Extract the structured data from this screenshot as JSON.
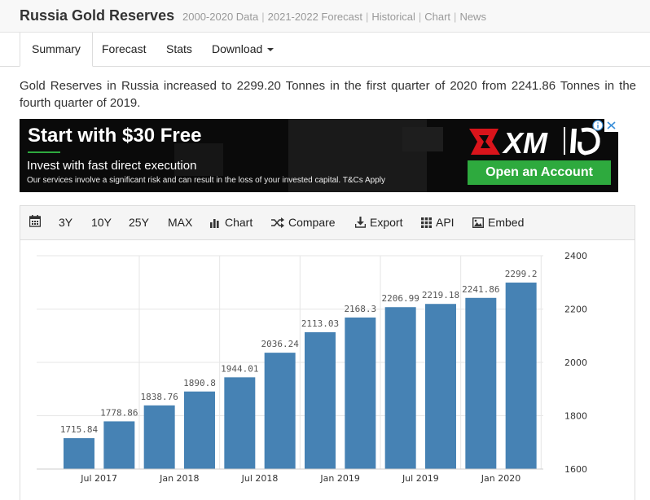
{
  "header": {
    "title": "Russia Gold Reserves",
    "nav": [
      "2000-2020 Data",
      "2021-2022 Forecast",
      "Historical",
      "Chart",
      "News"
    ]
  },
  "tabs": {
    "summary": "Summary",
    "forecast": "Forecast",
    "stats": "Stats",
    "download": "Download"
  },
  "description": "Gold Reserves in Russia increased to 2299.20 Tonnes in the first quarter of 2020 from 2241.86 Tonnes in the fourth quarter of 2019.",
  "ad": {
    "headline": "Start with $30 Free",
    "subline": "Invest with fast direct execution",
    "disclaimer": "Our services involve a significant risk and can result in the loss of your invested capital. T&Cs Apply",
    "brand": "XM",
    "cta": "Open an Account",
    "brand_color": "#d9141b",
    "cta_color": "#2eaa3e"
  },
  "toolbar": {
    "calendar_icon": "calendar-icon",
    "r3y": "3Y",
    "r10y": "10Y",
    "r25y": "25Y",
    "rmax": "MAX",
    "chart": "Chart",
    "compare": "Compare",
    "export": "Export",
    "api": "API",
    "embed": "Embed"
  },
  "chart_data": {
    "type": "bar",
    "title": "",
    "xlabel": "",
    "ylabel": "",
    "categories": [
      "2017 Q2",
      "2017 Q3",
      "2017 Q4",
      "2018 Q1",
      "2018 Q2",
      "2018 Q3",
      "2018 Q4",
      "2019 Q1",
      "2019 Q2",
      "2019 Q3",
      "2019 Q4",
      "2020 Q1"
    ],
    "values": [
      1715.84,
      1778.86,
      1838.76,
      1890.8,
      1944.01,
      2036.24,
      2113.03,
      2168.3,
      2206.99,
      2219.18,
      2241.86,
      2299.2
    ],
    "data_labels": [
      "1715.84",
      "1778.86",
      "1838.76",
      "1890.8",
      "1944.01",
      "2036.24",
      "2113.03",
      "2168.3",
      "2206.99",
      "2219.18",
      "2241.86",
      "2299.2"
    ],
    "x_ticks": [
      {
        "label": "Jul 2017",
        "index": 1
      },
      {
        "label": "Jan 2018",
        "index": 3
      },
      {
        "label": "Jul 2018",
        "index": 5
      },
      {
        "label": "Jan 2019",
        "index": 7
      },
      {
        "label": "Jul 2019",
        "index": 9
      },
      {
        "label": "Jan 2020",
        "index": 11
      }
    ],
    "y_ticks": [
      1600,
      1800,
      2000,
      2200,
      2400
    ],
    "ylim": [
      1600,
      2400
    ],
    "y_axis_side": "right",
    "grid": true,
    "bar_color": "#4682b4"
  }
}
